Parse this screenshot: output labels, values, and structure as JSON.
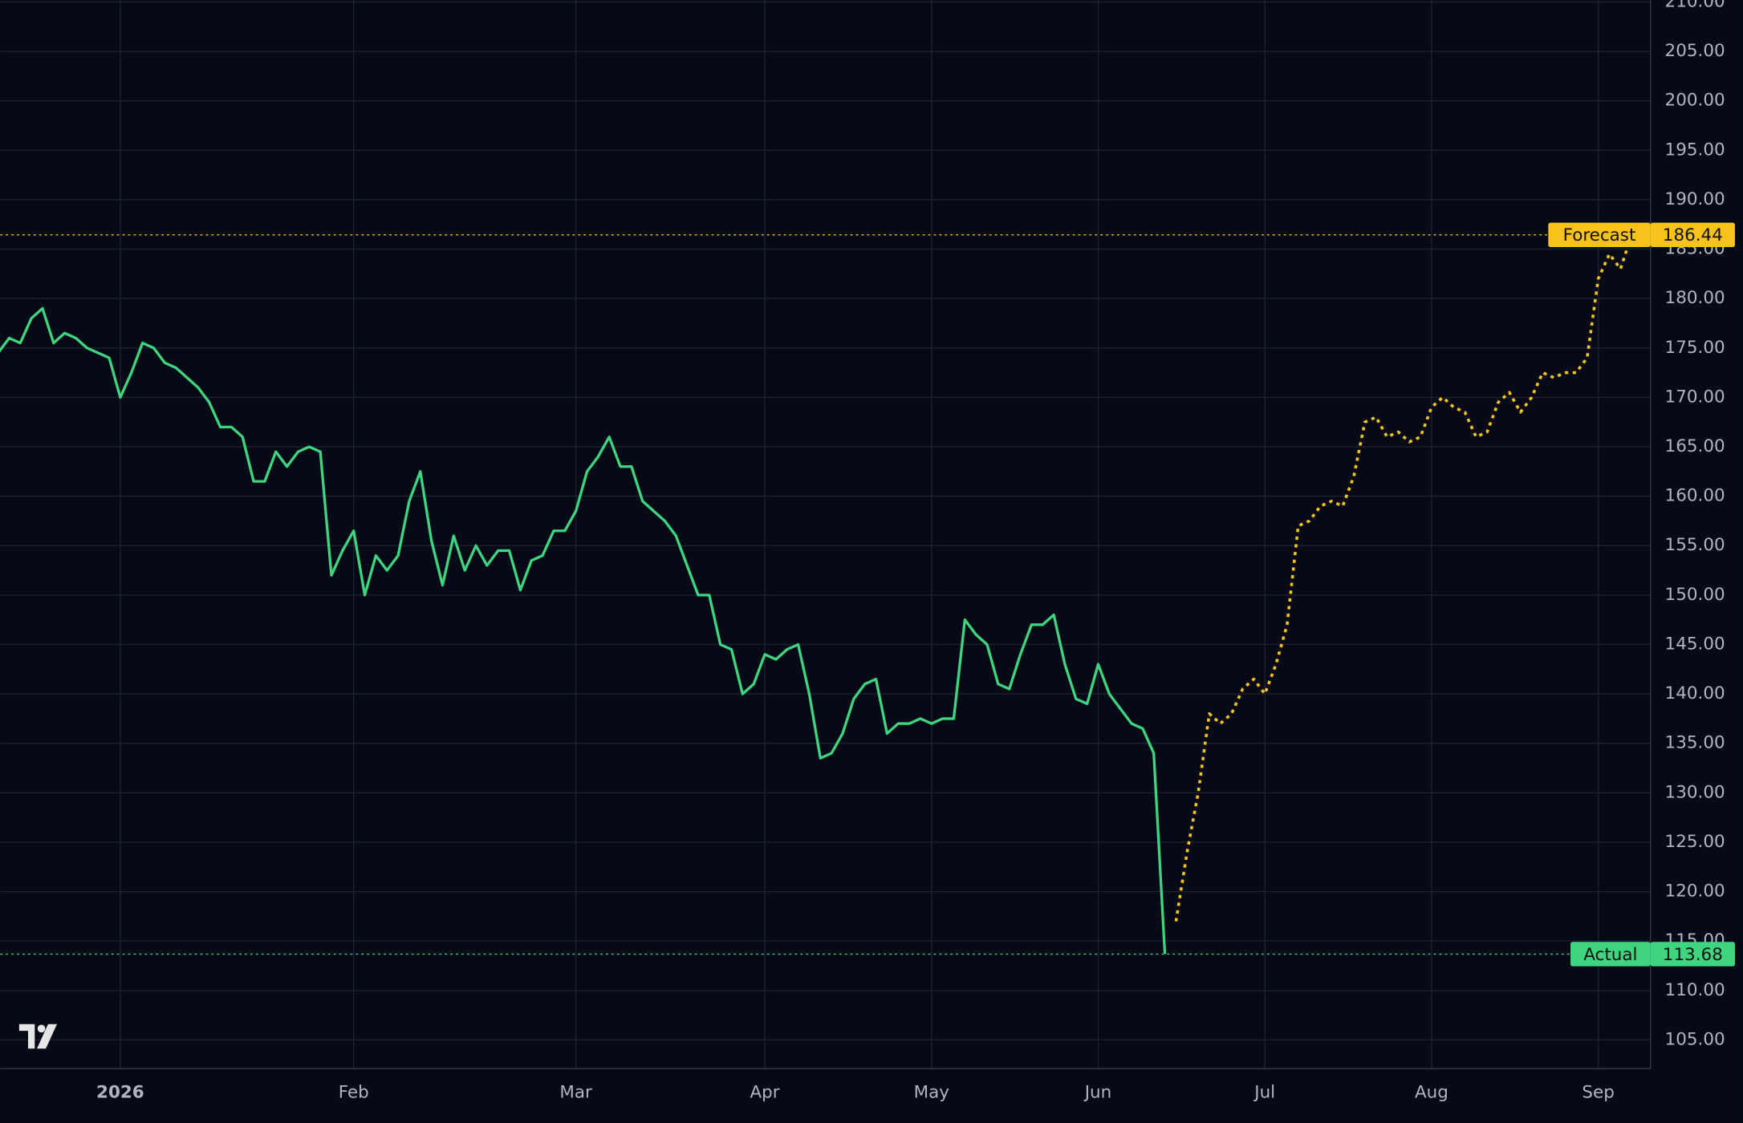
{
  "chart_data": {
    "type": "line",
    "categories": [
      null,
      null,
      null,
      null,
      null,
      null,
      null,
      null,
      null,
      null,
      null,
      "2026",
      null,
      null,
      null,
      null,
      null,
      null,
      null,
      null,
      null,
      null,
      null,
      null,
      null,
      null,
      null,
      null,
      null,
      null,
      null,
      null,
      "Feb",
      null,
      null,
      null,
      null,
      null,
      null,
      null,
      null,
      null,
      null,
      null,
      null,
      null,
      null,
      null,
      null,
      null,
      null,
      null,
      "Mar",
      null,
      null,
      null,
      null,
      null,
      null,
      null,
      null,
      null,
      null,
      null,
      null,
      null,
      null,
      null,
      null,
      "Apr",
      null,
      null,
      null,
      null,
      null,
      null,
      null,
      null,
      null,
      null,
      null,
      null,
      null,
      null,
      "May",
      null,
      null,
      null,
      null,
      null,
      null,
      null,
      null,
      null,
      null,
      null,
      null,
      null,
      null,
      "Jun",
      null,
      null,
      null,
      null,
      null,
      null,
      null,
      null,
      null,
      null,
      null,
      null,
      null,
      null,
      "Jul",
      null,
      null,
      null,
      null,
      null,
      null,
      null,
      null,
      null,
      null,
      null,
      null,
      null,
      null,
      "Aug",
      null,
      null,
      null,
      null,
      null,
      null,
      null,
      null,
      null,
      null,
      null,
      null,
      null,
      null,
      "Sep",
      null,
      null,
      null
    ],
    "series": [
      {
        "name": "Actual",
        "color": "#3fd47f",
        "dashed": false,
        "values": [
          174.5,
          176,
          175.5,
          178,
          179,
          175.5,
          176.5,
          176,
          175,
          174.5,
          174,
          170,
          172.5,
          175.5,
          175,
          173.5,
          173,
          172,
          171,
          169.5,
          167,
          167,
          166,
          161.5,
          161.5,
          164.5,
          163,
          164.5,
          165,
          164.5,
          152,
          154.5,
          156.5,
          150,
          154,
          152.5,
          154,
          159.5,
          162.5,
          155.5,
          151,
          156,
          152.5,
          155,
          153,
          154.5,
          154.5,
          150.5,
          153.5,
          154,
          156.5,
          156.5,
          158.5,
          162.5,
          164,
          166,
          163,
          163,
          159.5,
          158.5,
          157.5,
          156,
          153,
          150,
          150,
          145,
          144.5,
          140,
          141,
          144,
          143.5,
          144.5,
          145,
          140,
          133.5,
          134,
          136,
          139.5,
          141,
          141.5,
          136,
          137,
          137,
          137.5,
          137,
          137.5,
          137.5,
          147.5,
          146,
          145,
          141,
          140.5,
          144,
          147,
          147,
          148,
          143,
          139.5,
          139,
          143,
          140,
          138.5,
          137,
          136.5,
          134,
          113.68,
          null,
          null,
          null,
          null,
          null,
          null,
          null,
          null,
          null,
          null,
          null,
          null,
          null,
          null,
          null,
          null,
          null,
          null,
          null,
          null,
          null,
          null,
          null,
          null,
          null,
          null,
          null,
          null,
          null,
          null,
          null,
          null,
          null,
          null,
          null,
          null,
          null,
          null,
          null,
          null,
          null,
          null
        ]
      },
      {
        "name": "Forecast",
        "color": "#f7c21a",
        "dashed": true,
        "values": [
          null,
          null,
          null,
          null,
          null,
          null,
          null,
          null,
          null,
          null,
          null,
          null,
          null,
          null,
          null,
          null,
          null,
          null,
          null,
          null,
          null,
          null,
          null,
          null,
          null,
          null,
          null,
          null,
          null,
          null,
          null,
          null,
          null,
          null,
          null,
          null,
          null,
          null,
          null,
          null,
          null,
          null,
          null,
          null,
          null,
          null,
          null,
          null,
          null,
          null,
          null,
          null,
          null,
          null,
          null,
          null,
          null,
          null,
          null,
          null,
          null,
          null,
          null,
          null,
          null,
          null,
          null,
          null,
          null,
          null,
          null,
          null,
          null,
          null,
          null,
          null,
          null,
          null,
          null,
          null,
          null,
          null,
          null,
          null,
          null,
          null,
          null,
          null,
          null,
          null,
          null,
          null,
          null,
          null,
          null,
          null,
          null,
          null,
          null,
          null,
          null,
          null,
          null,
          null,
          null,
          null,
          117,
          124,
          130,
          138,
          137,
          138,
          140.5,
          141.5,
          140,
          143,
          147,
          157,
          157.5,
          159,
          159.5,
          159,
          162,
          167.5,
          168,
          166,
          166.5,
          165.5,
          166,
          169,
          170,
          169,
          168.5,
          166,
          166.5,
          169.5,
          170.5,
          168.5,
          170,
          172.5,
          172,
          172.5,
          172.5,
          174,
          182,
          184.5,
          183,
          186.44
        ]
      }
    ],
    "ylim": [
      102.1,
      210.2
    ],
    "yticks": [
      {
        "value": 105,
        "label": "105.00"
      },
      {
        "value": 110,
        "label": "110.00"
      },
      {
        "value": 115,
        "label": "115.00"
      },
      {
        "value": 120,
        "label": "120.00"
      },
      {
        "value": 125,
        "label": "125.00"
      },
      {
        "value": 130,
        "label": "130.00"
      },
      {
        "value": 135,
        "label": "135.00"
      },
      {
        "value": 140,
        "label": "140.00"
      },
      {
        "value": 145,
        "label": "145.00"
      },
      {
        "value": 150,
        "label": "150.00"
      },
      {
        "value": 155,
        "label": "155.00"
      },
      {
        "value": 160,
        "label": "160.00"
      },
      {
        "value": 165,
        "label": "165.00"
      },
      {
        "value": 170,
        "label": "170.00"
      },
      {
        "value": 175,
        "label": "175.00"
      },
      {
        "value": 180,
        "label": "180.00"
      },
      {
        "value": 185,
        "label": "185.00"
      },
      {
        "value": 190,
        "label": "190.00"
      },
      {
        "value": 195,
        "label": "195.00"
      },
      {
        "value": 200,
        "label": "200.00"
      },
      {
        "value": 205,
        "label": "205.00"
      },
      {
        "value": 210,
        "label": "210.00"
      }
    ],
    "grid": true
  }
}
